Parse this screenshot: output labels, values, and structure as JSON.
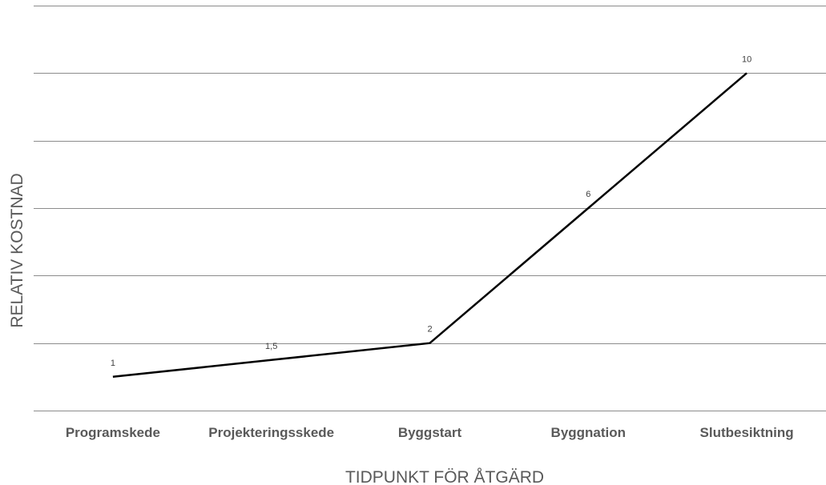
{
  "chart_data": {
    "type": "line",
    "title": "",
    "xlabel": "TIDPUNKT FÖR ÅTGÄRD",
    "ylabel": "RELATIV KOSTNAD",
    "categories": [
      "Programskede",
      "Projekteringsskede",
      "Byggstart",
      "Byggnation",
      "Slutbesiktning"
    ],
    "series": [
      {
        "values": [
          1,
          1.5,
          2,
          6,
          10
        ],
        "labels": [
          "1",
          "1,5",
          "2",
          "6",
          "10"
        ],
        "color": "#000000"
      }
    ],
    "ylim": [
      0,
      12
    ],
    "y_tick_step": 2,
    "y_tick_labels_shown": false,
    "grid": true,
    "legend": "none"
  }
}
